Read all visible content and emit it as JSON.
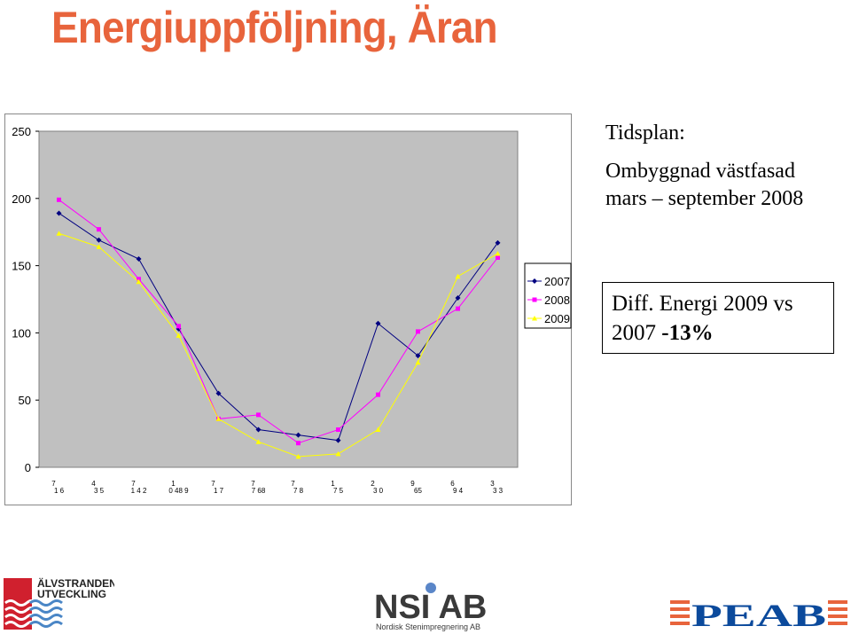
{
  "page": {
    "title": "Energiuppföljning, Äran"
  },
  "tidsplan": {
    "heading": "Tidsplan:",
    "line1": "Ombyggnad västfasad",
    "line2": "mars – september 2008"
  },
  "diff": {
    "line1": "Diff. Energi 2009 vs",
    "line2_prefix": "2007 ",
    "line2_value": "-13%"
  },
  "logos": {
    "alvstranden_line1": "ÄLVSTRANDEN",
    "alvstranden_line2": "UTVECKLING",
    "nsi_main": "NSI AB",
    "nsi_sub": "Nordisk Stenimpregnering AB",
    "peab": "PEAB"
  },
  "chart_data": {
    "type": "line",
    "ylim": [
      0,
      250
    ],
    "yticks": [
      0,
      50,
      100,
      150,
      200,
      250
    ],
    "categories": [
      "1",
      "2",
      "3",
      "4",
      "5",
      "6",
      "7",
      "8",
      "9",
      "10",
      "11",
      "12"
    ],
    "x_tick_labels": [
      {
        "top": "7",
        "bottom": "1 6"
      },
      {
        "top": "4",
        "bottom": "3  5"
      },
      {
        "top": "7",
        "bottom": "1 4 2"
      },
      {
        "top": "1",
        "bottom": "0 48 9"
      },
      {
        "top": "7",
        "bottom": "1  7"
      },
      {
        "top": "7",
        "bottom": "7  68"
      },
      {
        "top": "7",
        "bottom": "7  8"
      },
      {
        "top": "1",
        "bottom": "7  5"
      },
      {
        "top": "2",
        "bottom": "3 0"
      },
      {
        "top": "9",
        "bottom": "65"
      },
      {
        "top": "6",
        "bottom": "9  4"
      },
      {
        "top": "3",
        "bottom": "3  3"
      }
    ],
    "series": [
      {
        "name": "2007",
        "color": "#000080",
        "marker": "diamond",
        "values": [
          189,
          169,
          155,
          103,
          55,
          28,
          24,
          20,
          107,
          83,
          126,
          167
        ]
      },
      {
        "name": "2008",
        "color": "#ff00ff",
        "marker": "square",
        "values": [
          199,
          177,
          140,
          105,
          36,
          39,
          18,
          28,
          54,
          101,
          118,
          156
        ]
      },
      {
        "name": "2009",
        "color": "#ffff00",
        "marker": "triangle",
        "values": [
          174,
          164,
          138,
          98,
          36,
          19,
          8,
          10,
          28,
          78,
          142,
          159
        ]
      }
    ],
    "grid": false,
    "legend_position": "right"
  }
}
